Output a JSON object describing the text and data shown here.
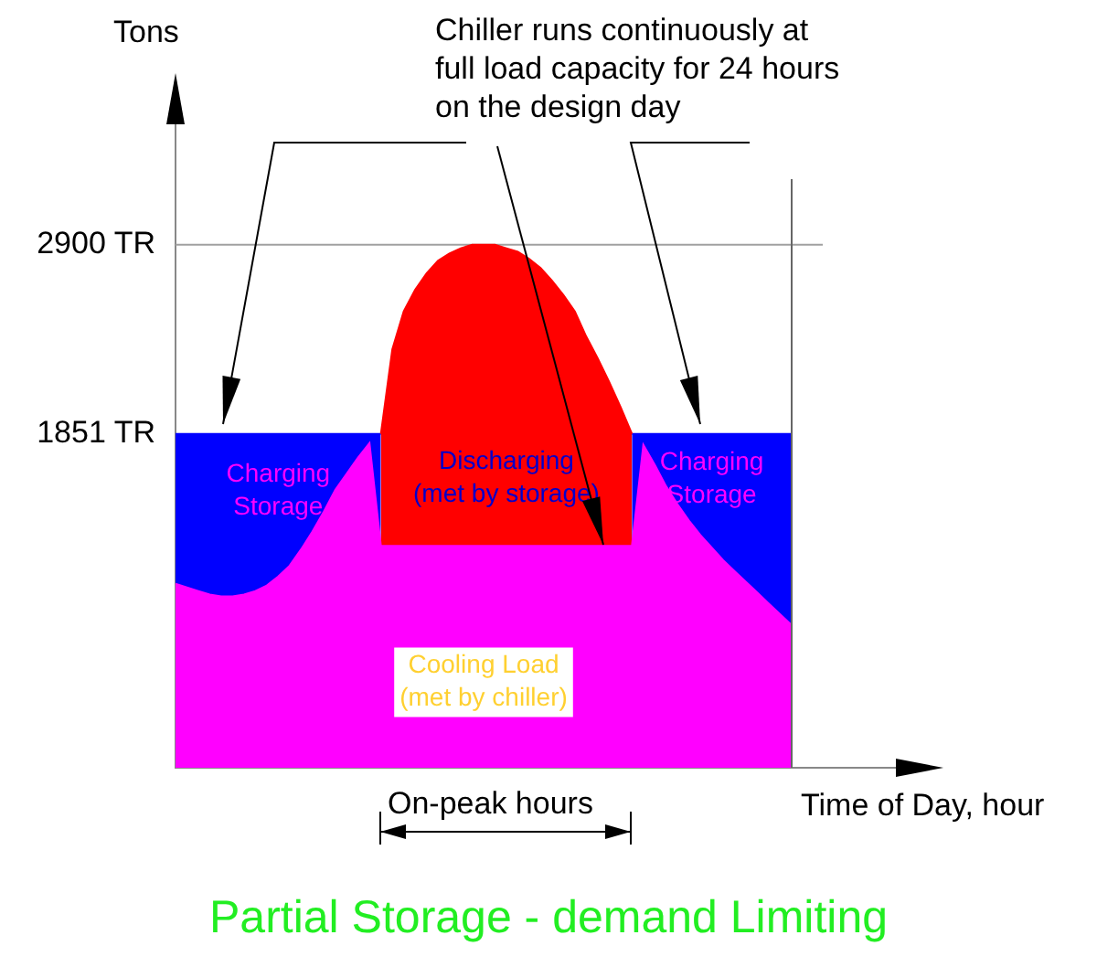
{
  "chart_data": {
    "type": "area",
    "title": "Partial Storage - demand Limiting",
    "xlabel": "Time of Day, hour",
    "ylabel": "Tons",
    "annotations": [
      "Chiller runs continuously at full load capacity for 24 hours on the design day",
      "On-peak hours"
    ],
    "categories": [
      null,
      null,
      null,
      null,
      null,
      null,
      null,
      null,
      null,
      null,
      null,
      null,
      null,
      null,
      null,
      null,
      null,
      null,
      null,
      null,
      null,
      null,
      null,
      null,
      null,
      null,
      null,
      null,
      null,
      null,
      null,
      null,
      null,
      null,
      null,
      null,
      null,
      null,
      null,
      null,
      null,
      null,
      null,
      null,
      null,
      null,
      null,
      null,
      null,
      null,
      null,
      null,
      null,
      null,
      null
    ],
    "ylim": [
      0,
      3800
    ],
    "yticks": [
      {
        "value": 1851,
        "label": "1851 TR"
      },
      {
        "value": 2900,
        "label": "2900 TR"
      }
    ],
    "ref_lines": [
      {
        "axis": "y",
        "value": 2900,
        "color": "#a0a0a0"
      }
    ],
    "grid": false,
    "legend": false,
    "series": [
      {
        "name": "Charging Storage",
        "color": "#0000ff",
        "values": [
          1851,
          1851,
          1851,
          1851,
          1851,
          1851,
          1851,
          1851,
          1851,
          1851,
          1851,
          1851,
          1851,
          1851,
          1851,
          1851,
          1851,
          1851,
          1851,
          null,
          null,
          null,
          null,
          null,
          null,
          null,
          null,
          null,
          null,
          null,
          null,
          null,
          null,
          null,
          null,
          null,
          null,
          null,
          null,
          null,
          null,
          null,
          null,
          null,
          null,
          null,
          null,
          null,
          null,
          null,
          null,
          null,
          null,
          null,
          null
        ]
      },
      {
        "name": "Charging Storage",
        "color": "#0000ff",
        "values": [
          null,
          null,
          null,
          null,
          null,
          null,
          null,
          null,
          null,
          null,
          null,
          null,
          null,
          null,
          null,
          null,
          null,
          null,
          null,
          null,
          null,
          null,
          null,
          null,
          null,
          null,
          null,
          null,
          null,
          null,
          null,
          null,
          null,
          null,
          null,
          null,
          null,
          null,
          null,
          null,
          1851,
          1851,
          1851,
          1851,
          1851,
          1851,
          1851,
          1851,
          1851,
          1851,
          1851,
          1851,
          1851,
          1851,
          1851
        ]
      },
      {
        "name": "Discharging (met by storage)",
        "color": "#ff0000",
        "values": [
          null,
          null,
          null,
          null,
          null,
          null,
          null,
          null,
          null,
          null,
          null,
          null,
          null,
          null,
          null,
          null,
          null,
          null,
          1851,
          2320,
          2530,
          2650,
          2740,
          2810,
          2850,
          2880,
          2900,
          2900,
          2900,
          2880,
          2860,
          2820,
          2770,
          2700,
          2620,
          2530,
          2390,
          2270,
          2140,
          2000,
          1851,
          null,
          null,
          null,
          null,
          null,
          null,
          null,
          null,
          null,
          null,
          null,
          null,
          null,
          null
        ]
      },
      {
        "name": "Cooling Load (met by chiller)",
        "color": "#ff00ff",
        "values": [
          1020,
          1000,
          980,
          960,
          950,
          950,
          960,
          980,
          1010,
          1060,
          1120,
          1210,
          1310,
          1420,
          1540,
          1630,
          1720,
          1800,
          1230,
          1230,
          1230,
          1230,
          1230,
          1230,
          1230,
          1230,
          1230,
          1230,
          1230,
          1230,
          1230,
          1230,
          1230,
          1230,
          1230,
          1230,
          1230,
          1230,
          1230,
          1230,
          1230,
          1790,
          1680,
          1560,
          1460,
          1370,
          1290,
          1220,
          1150,
          1090,
          1030,
          970,
          910,
          850,
          790
        ]
      }
    ]
  }
}
